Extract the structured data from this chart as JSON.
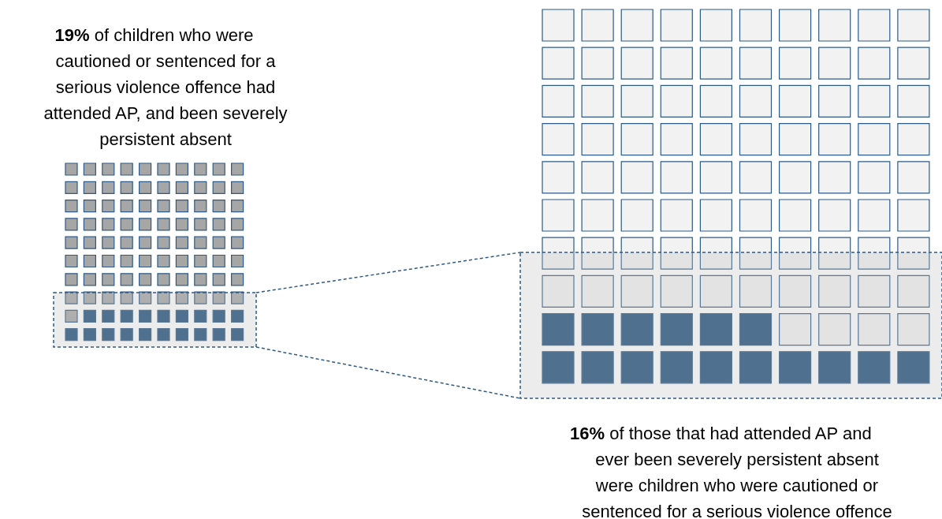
{
  "chart_data": {
    "type": "other",
    "values": [
      19,
      16
    ],
    "colors": [
      "#1f4e79",
      "#1f4e79"
    ],
    "value_labels": [
      "19%",
      "16%"
    ],
    "annotations": [
      "of children who were\ncautioned or sentenced for a\nserious violence offence had\nattended AP, and been severely\npersistent absent",
      "of those that had attended AP and\never been severely persistent absent\nwere children who were cautioned or\nsentenced for a serious violence offence"
    ]
  }
}
